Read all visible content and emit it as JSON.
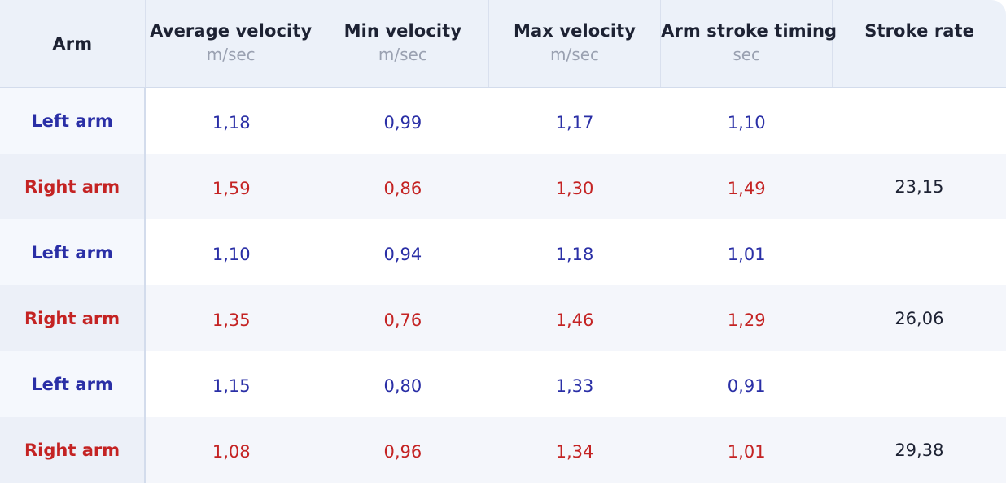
{
  "table": {
    "headers": [
      {
        "title": "Arm",
        "unit": ""
      },
      {
        "title": "Average velocity",
        "unit": "m/sec"
      },
      {
        "title": "Min velocity",
        "unit": "m/sec"
      },
      {
        "title": "Max velocity",
        "unit": "m/sec"
      },
      {
        "title": "Arm stroke timing",
        "unit": "sec"
      },
      {
        "title": "Stroke rate",
        "unit": ""
      }
    ],
    "rows": [
      {
        "arm": "Left arm",
        "side": "left",
        "avg": "1,18",
        "min": "0,99",
        "max": "1,17",
        "timing": "1,10",
        "rate": ""
      },
      {
        "arm": "Right arm",
        "side": "right",
        "avg": "1,59",
        "min": "0,86",
        "max": "1,30",
        "timing": "1,49",
        "rate": "23,15"
      },
      {
        "arm": "Left arm",
        "side": "left",
        "avg": "1,10",
        "min": "0,94",
        "max": "1,18",
        "timing": "1,01",
        "rate": ""
      },
      {
        "arm": "Right arm",
        "side": "right",
        "avg": "1,35",
        "min": "0,76",
        "max": "1,46",
        "timing": "1,29",
        "rate": "26,06"
      },
      {
        "arm": "Left arm",
        "side": "left",
        "avg": "1,15",
        "min": "0,80",
        "max": "1,33",
        "timing": "0,91",
        "rate": ""
      },
      {
        "arm": "Right arm",
        "side": "right",
        "avg": "1,08",
        "min": "0,96",
        "max": "1,34",
        "timing": "1,01",
        "rate": "29,38"
      }
    ]
  },
  "colors": {
    "left_arm": "#2a2fa6",
    "right_arm": "#c42323",
    "header_bg": "#ecf1f9",
    "unit_text": "#9aa1b1"
  }
}
